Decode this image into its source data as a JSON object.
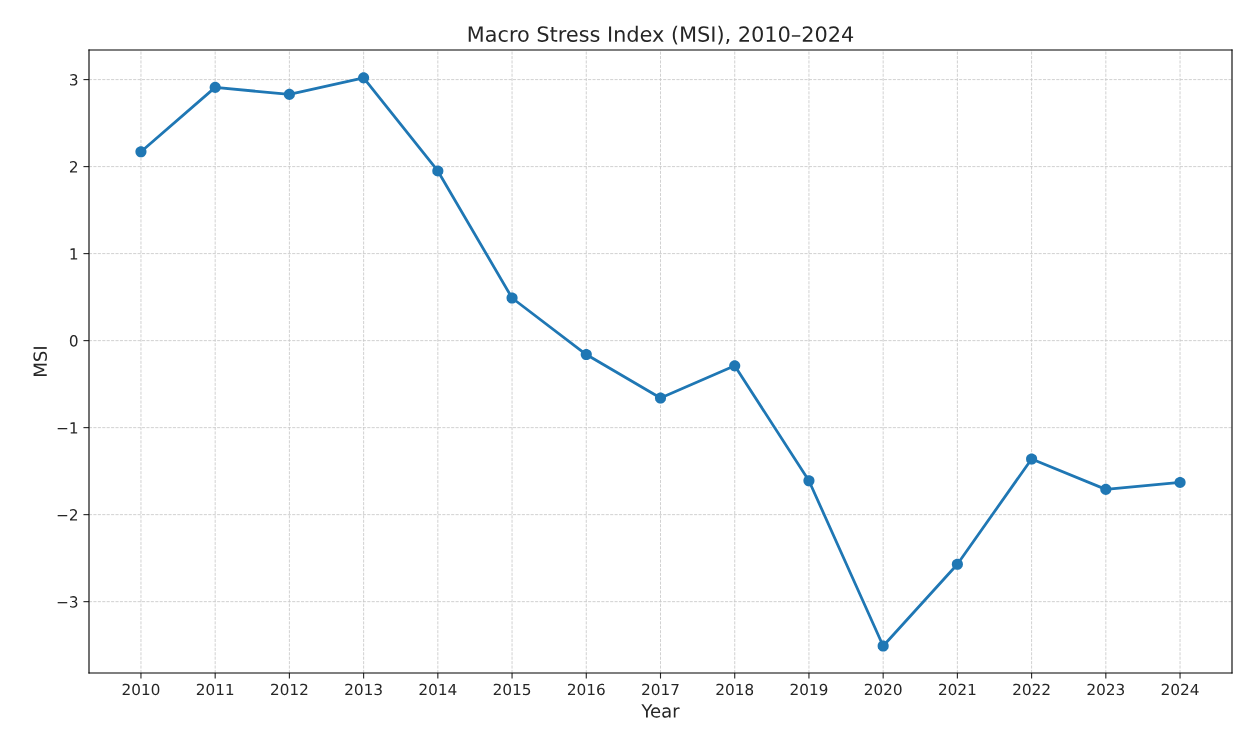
{
  "chart_data": {
    "type": "line",
    "title": "Macro Stress Index (MSI), 2010–2024",
    "xlabel": "Year",
    "ylabel": "MSI",
    "x": [
      2010,
      2011,
      2012,
      2013,
      2014,
      2015,
      2016,
      2017,
      2018,
      2019,
      2020,
      2021,
      2022,
      2023,
      2024
    ],
    "series": [
      {
        "color": "#1f77b4",
        "values": [
          2.17,
          2.91,
          2.83,
          3.02,
          1.95,
          0.49,
          -0.16,
          -0.66,
          -0.29,
          -1.61,
          -3.51,
          -2.57,
          -1.36,
          -1.71,
          -1.63
        ]
      }
    ],
    "xlim": [
      2009.3,
      2024.7
    ],
    "xticks": [
      2010,
      2011,
      2012,
      2013,
      2014,
      2015,
      2016,
      2017,
      2018,
      2019,
      2020,
      2021,
      2022,
      2023,
      2024
    ],
    "ylim": [
      -3.82,
      3.34
    ],
    "yticks": [
      -3,
      -2,
      -1,
      0,
      1,
      2,
      3
    ],
    "grid": true,
    "marker": "circle",
    "line_style": "solid",
    "legend": false
  }
}
